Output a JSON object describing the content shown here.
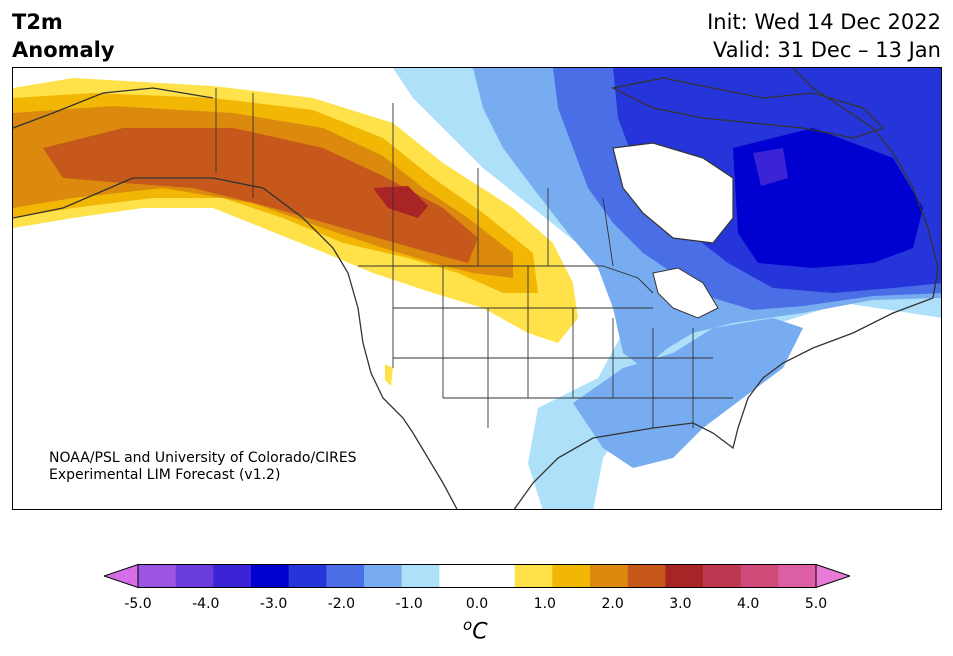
{
  "title_left": [
    "T2m",
    "Anomaly"
  ],
  "title_right": [
    "Init: Wed 14 Dec 2022",
    "Valid: 31 Dec – 13 Jan"
  ],
  "credit": [
    "NOAA/PSL and University of Colorado/CIRES",
    "Experimental LIM Forecast (v1.2)"
  ],
  "colorbar": {
    "colors": [
      "#d66de8",
      "#9b55e0",
      "#6a3ddb",
      "#3a24d6",
      "#0000d0",
      "#2535d9",
      "#4a6ee6",
      "#78acf0",
      "#aee0fa",
      "#ffffff",
      "#ffffff",
      "#ffe24a",
      "#f2b705",
      "#db8a0e",
      "#c5581a",
      "#a82425",
      "#bf3651",
      "#cf4a78",
      "#dc5fa4",
      "#e87bd8"
    ],
    "tick_labels": [
      "-5.0",
      "-4.0",
      "-3.0",
      "-2.0",
      "-1.0",
      "0.0",
      "1.0",
      "2.0",
      "3.0",
      "4.0",
      "5.0"
    ],
    "unit_superscript": "o",
    "unit": "C"
  }
}
